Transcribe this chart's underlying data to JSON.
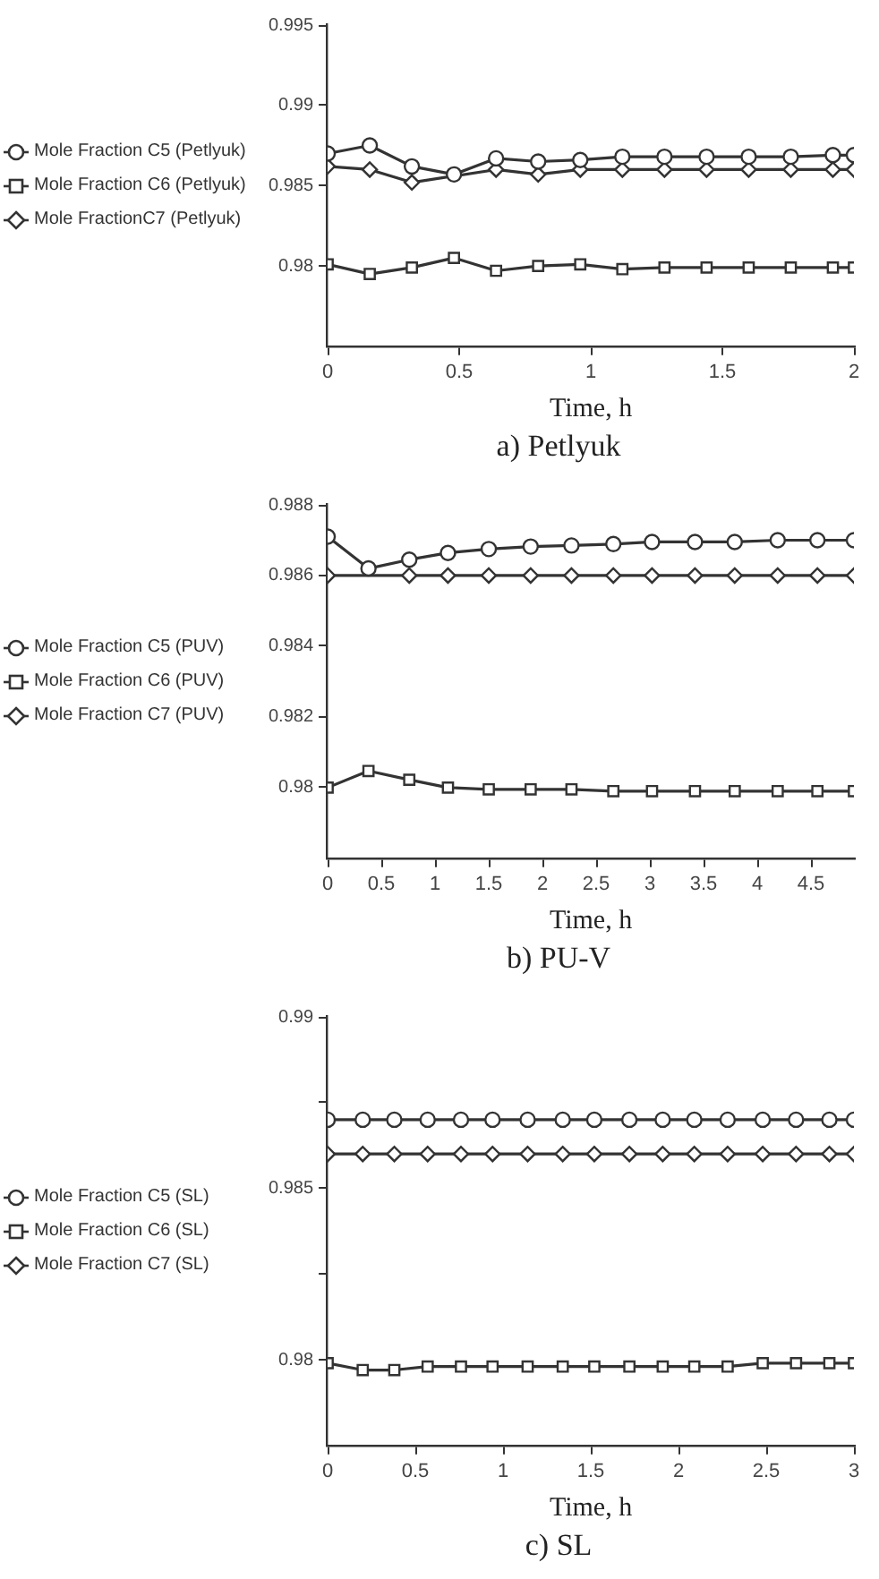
{
  "chart_data": [
    {
      "type": "line",
      "title": "a) Petlyuk",
      "xlabel": "Time, h",
      "xlim": [
        0,
        2
      ],
      "xticks": [
        0,
        0.5,
        1,
        1.5,
        2
      ],
      "ylim": [
        0.975,
        0.995
      ],
      "yticks": [
        0.98,
        0.985,
        0.99,
        0.995
      ],
      "legend": "left",
      "grid": false,
      "series": [
        {
          "name": "Mole Fraction C5 (Petlyuk)",
          "color": "#333333",
          "marker": "circle",
          "x": [
            0,
            0.16,
            0.32,
            0.48,
            0.64,
            0.8,
            0.96,
            1.12,
            1.28,
            1.44,
            1.6,
            1.76,
            1.92,
            2
          ],
          "values": [
            0.987,
            0.9875,
            0.9862,
            0.9857,
            0.9867,
            0.9865,
            0.9866,
            0.9868,
            0.9868,
            0.9868,
            0.9868,
            0.9868,
            0.9869,
            0.9869
          ]
        },
        {
          "name": "Mole Fraction C6 (Petlyuk)",
          "color": "#333333",
          "marker": "square",
          "x": [
            0,
            0.16,
            0.32,
            0.48,
            0.64,
            0.8,
            0.96,
            1.12,
            1.28,
            1.44,
            1.6,
            1.76,
            1.92,
            2
          ],
          "values": [
            0.9801,
            0.9795,
            0.9799,
            0.9805,
            0.9797,
            0.98,
            0.9801,
            0.9798,
            0.9799,
            0.9799,
            0.9799,
            0.9799,
            0.9799,
            0.9799
          ]
        },
        {
          "name": "Mole FractionC7 (Petlyuk)",
          "color": "#333333",
          "marker": "diamond",
          "x": [
            0,
            0.16,
            0.32,
            0.48,
            0.64,
            0.8,
            0.96,
            1.12,
            1.28,
            1.44,
            1.6,
            1.76,
            1.92,
            2
          ],
          "values": [
            0.9862,
            0.986,
            0.9852,
            null,
            0.986,
            0.9857,
            0.986,
            0.986,
            0.986,
            0.986,
            0.986,
            0.986,
            0.986,
            0.986
          ]
        }
      ]
    },
    {
      "type": "line",
      "title": "b) PU-V",
      "xlabel": "Time, h",
      "xlim": [
        0,
        4.9
      ],
      "xticks": [
        0,
        0.5,
        1,
        1.5,
        2,
        2.5,
        3,
        3.5,
        4,
        4.5
      ],
      "ylim": [
        0.978,
        0.988
      ],
      "yticks": [
        0.98,
        0.982,
        0.984,
        0.986,
        0.988
      ],
      "legend": "left",
      "grid": false,
      "series": [
        {
          "name": "Mole Fraction C5 (PUV)",
          "color": "#333333",
          "marker": "circle",
          "x": [
            0,
            0.38,
            0.76,
            1.12,
            1.5,
            1.89,
            2.27,
            2.66,
            3.02,
            3.42,
            3.79,
            4.19,
            4.56,
            4.9
          ],
          "values": [
            0.9871,
            0.9862,
            0.98645,
            0.98664,
            0.98675,
            0.98682,
            0.98685,
            0.98689,
            0.98695,
            0.98695,
            0.98695,
            0.987,
            0.987,
            0.987
          ]
        },
        {
          "name": "Mole Fraction C6 (PUV)",
          "color": "#333333",
          "marker": "square",
          "x": [
            0,
            0.38,
            0.76,
            1.12,
            1.5,
            1.89,
            2.27,
            2.66,
            3.02,
            3.42,
            3.79,
            4.19,
            4.56,
            4.9
          ],
          "values": [
            0.98,
            0.98047,
            0.98022,
            0.98,
            0.97995,
            0.97995,
            0.97995,
            0.9799,
            0.9799,
            0.9799,
            0.9799,
            0.9799,
            0.9799,
            0.9799
          ]
        },
        {
          "name": "Mole Fraction C7 (PUV)",
          "color": "#333333",
          "marker": "diamond",
          "x": [
            0,
            0.38,
            0.76,
            1.12,
            1.5,
            1.89,
            2.27,
            2.66,
            3.02,
            3.42,
            3.79,
            4.19,
            4.56,
            4.9
          ],
          "values": [
            0.986,
            null,
            0.986,
            0.986,
            0.986,
            0.986,
            0.986,
            0.986,
            0.986,
            0.986,
            0.986,
            0.986,
            0.986,
            0.986
          ]
        }
      ]
    },
    {
      "type": "line",
      "title": "c) SL",
      "xlabel": "Time, h",
      "xlim": [
        0,
        3
      ],
      "xticks": [
        0,
        0.5,
        1,
        1.5,
        2,
        2.5,
        3
      ],
      "ylim": [
        0.9775,
        0.99
      ],
      "yticks": [
        0.98,
        {
          "value": 0.9825,
          "label": null
        },
        0.985,
        {
          "value": 0.9875,
          "label": null
        },
        0.99
      ],
      "legend": "left",
      "grid": false,
      "series": [
        {
          "name": "Mole Fraction C5 (SL)",
          "color": "#333333",
          "marker": "circle",
          "x": [
            0,
            0.2,
            0.38,
            0.57,
            0.76,
            0.94,
            1.14,
            1.34,
            1.52,
            1.72,
            1.91,
            2.09,
            2.28,
            2.48,
            2.67,
            2.86,
            3
          ],
          "values": [
            0.987,
            0.987,
            0.987,
            0.987,
            0.987,
            0.987,
            0.987,
            0.987,
            0.987,
            0.987,
            0.987,
            0.987,
            0.987,
            0.987,
            0.987,
            0.987,
            0.987
          ]
        },
        {
          "name": "Mole Fraction C6 (SL)",
          "color": "#333333",
          "marker": "square",
          "x": [
            0,
            0.2,
            0.38,
            0.57,
            0.76,
            0.94,
            1.14,
            1.34,
            1.52,
            1.72,
            1.91,
            2.09,
            2.28,
            2.48,
            2.67,
            2.86,
            3
          ],
          "values": [
            0.9799,
            0.9797,
            0.9797,
            0.9798,
            0.9798,
            0.9798,
            0.9798,
            0.9798,
            0.9798,
            0.9798,
            0.9798,
            0.9798,
            0.9798,
            0.9799,
            0.9799,
            0.9799,
            0.9799
          ]
        },
        {
          "name": "Mole Fraction C7 (SL)",
          "color": "#333333",
          "marker": "diamond",
          "x": [
            0,
            0.2,
            0.38,
            0.57,
            0.76,
            0.94,
            1.14,
            1.34,
            1.52,
            1.72,
            1.91,
            2.09,
            2.28,
            2.48,
            2.67,
            2.86,
            3
          ],
          "values": [
            0.986,
            0.986,
            0.986,
            0.986,
            0.986,
            0.986,
            0.986,
            0.986,
            0.986,
            0.986,
            0.986,
            0.986,
            0.986,
            0.986,
            0.986,
            0.986,
            0.986
          ]
        }
      ]
    }
  ]
}
